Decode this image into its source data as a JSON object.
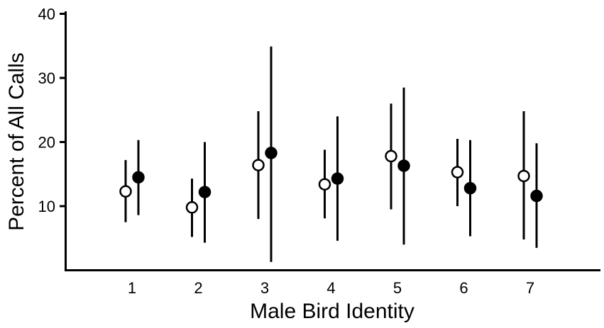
{
  "chart_data": {
    "type": "scatter",
    "title": "",
    "xlabel": "Male Bird Identity",
    "ylabel": "Percent of All Calls",
    "x_categories": [
      "1",
      "2",
      "3",
      "4",
      "5",
      "6",
      "7"
    ],
    "y_ticks": [
      "10",
      "20",
      "30",
      "40"
    ],
    "ylim": [
      0,
      40
    ],
    "grid": false,
    "legend": "none",
    "series": [
      {
        "marker": "open-circle",
        "color": "#000000",
        "fill": "#ffffff",
        "points": [
          {
            "x": "1",
            "y": 12.3,
            "low": 7.5,
            "high": 17.2
          },
          {
            "x": "2",
            "y": 9.8,
            "low": 5.2,
            "high": 14.3
          },
          {
            "x": "3",
            "y": 16.4,
            "low": 8.0,
            "high": 24.8
          },
          {
            "x": "4",
            "y": 13.4,
            "low": 8.1,
            "high": 18.8
          },
          {
            "x": "5",
            "y": 17.8,
            "low": 9.5,
            "high": 26.0
          },
          {
            "x": "6",
            "y": 15.3,
            "low": 10.0,
            "high": 20.5
          },
          {
            "x": "7",
            "y": 14.7,
            "low": 4.8,
            "high": 24.8
          }
        ]
      },
      {
        "marker": "filled-circle",
        "color": "#000000",
        "fill": "#000000",
        "points": [
          {
            "x": "1",
            "y": 14.5,
            "low": 8.6,
            "high": 20.3
          },
          {
            "x": "2",
            "y": 12.2,
            "low": 4.3,
            "high": 20.0
          },
          {
            "x": "3",
            "y": 18.3,
            "low": 1.3,
            "high": 34.9
          },
          {
            "x": "4",
            "y": 14.3,
            "low": 4.6,
            "high": 24.0
          },
          {
            "x": "5",
            "y": 16.3,
            "low": 4.0,
            "high": 28.5
          },
          {
            "x": "6",
            "y": 12.8,
            "low": 5.3,
            "high": 20.3
          },
          {
            "x": "7",
            "y": 11.6,
            "low": 3.5,
            "high": 19.8
          }
        ]
      }
    ]
  }
}
